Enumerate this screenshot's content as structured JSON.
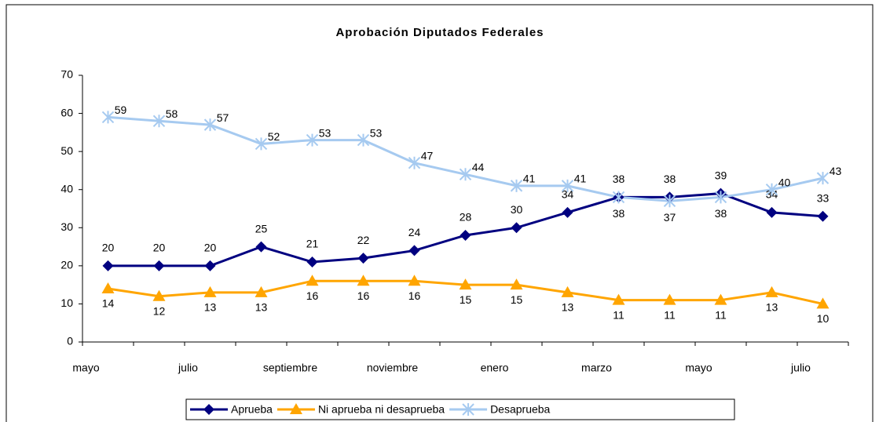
{
  "chart_data": {
    "type": "line",
    "title": "Aprobación Diputados Federales",
    "categories": [
      "mayo",
      null,
      "julio",
      null,
      "septiembre",
      null,
      "noviembre",
      null,
      "enero",
      null,
      "marzo",
      null,
      "mayo",
      null,
      "julio"
    ],
    "series": [
      {
        "name": "Aprueba",
        "color": "#000080",
        "marker": "diamond",
        "values": [
          20,
          20,
          20,
          25,
          21,
          22,
          24,
          28,
          30,
          34,
          38,
          38,
          39,
          34,
          33
        ]
      },
      {
        "name": "Ni aprueba ni desaprueba",
        "color": "#ffa500",
        "marker": "triangle",
        "values": [
          14,
          12,
          13,
          13,
          16,
          16,
          16,
          15,
          15,
          13,
          11,
          11,
          11,
          13,
          10
        ]
      },
      {
        "name": "Desaprueba",
        "color": "#a6caf0",
        "marker": "asterisk",
        "values": [
          59,
          58,
          57,
          52,
          53,
          53,
          47,
          44,
          41,
          41,
          38,
          37,
          38,
          40,
          43
        ]
      }
    ],
    "ylim": [
      0,
      70
    ],
    "yticks": [
      0,
      10,
      20,
      30,
      40,
      50,
      60,
      70
    ],
    "legend": "bottom",
    "grid": false
  }
}
